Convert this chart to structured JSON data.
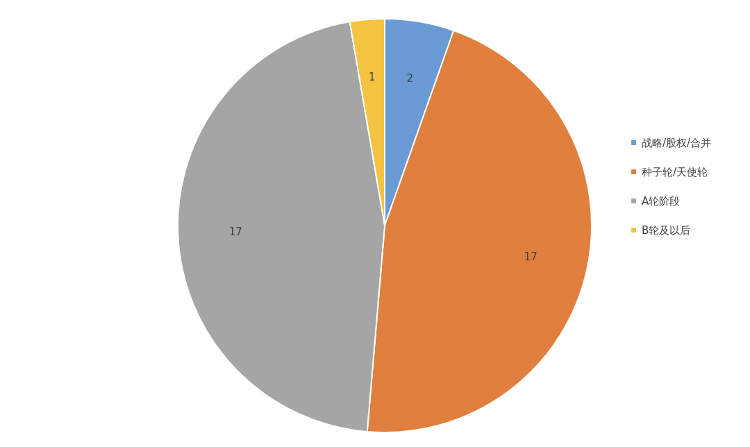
{
  "chart_data": {
    "type": "pie",
    "categories": [
      "战略/股权/合并",
      "种子轮/天使轮",
      "A轮阶段",
      "B轮及以后"
    ],
    "values": [
      2,
      17,
      17,
      1
    ],
    "colors": [
      "#6a9bd5",
      "#e07f3e",
      "#a5a5a5",
      "#f4c342"
    ],
    "data_labels": true,
    "legend": "right"
  }
}
